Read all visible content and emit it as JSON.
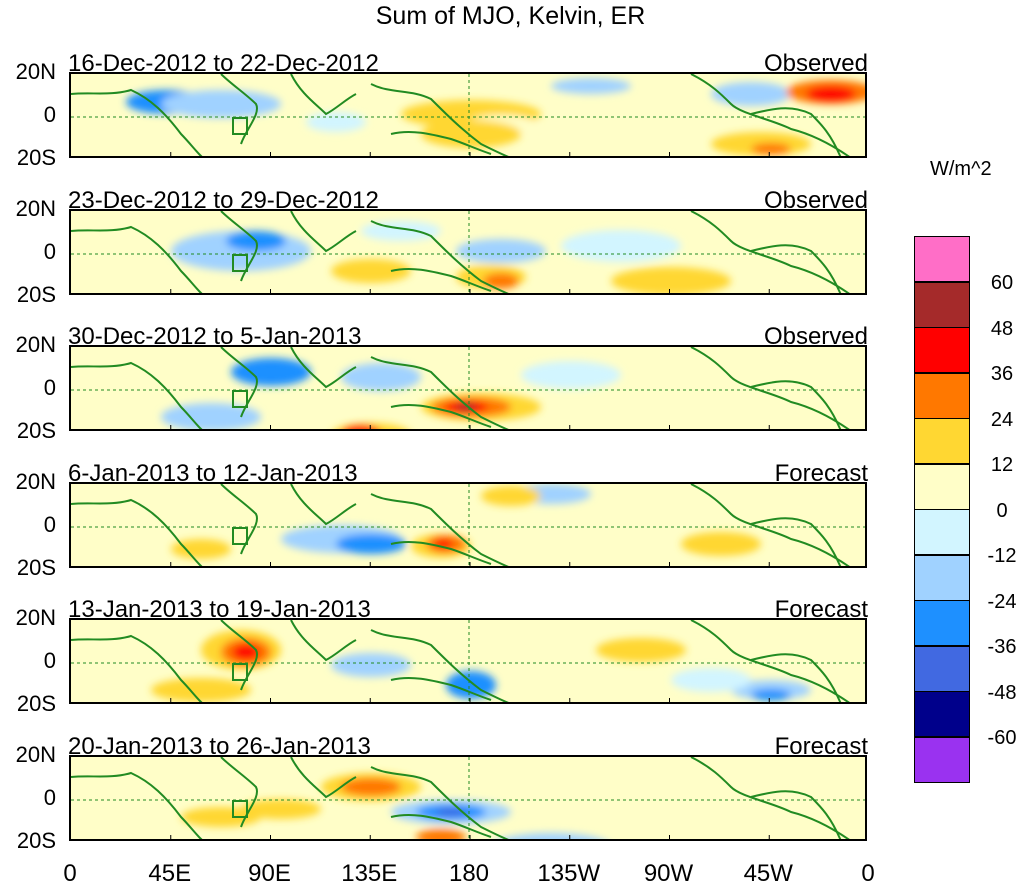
{
  "title": "Sum of MJO, Kelvin, ER",
  "units": "W/m^2",
  "panels": [
    {
      "date_range": "16-Dec-2012 to 22-Dec-2012",
      "status": "Observed"
    },
    {
      "date_range": "23-Dec-2012 to 29-Dec-2012",
      "status": "Observed"
    },
    {
      "date_range": "30-Dec-2012 to 5-Jan-2013",
      "status": "Observed"
    },
    {
      "date_range": "6-Jan-2013 to 12-Jan-2013",
      "status": "Forecast"
    },
    {
      "date_range": "13-Jan-2013 to 19-Jan-2013",
      "status": "Forecast"
    },
    {
      "date_range": "20-Jan-2013 to 26-Jan-2013",
      "status": "Forecast"
    }
  ],
  "lat_labels": [
    "20N",
    "0",
    "20S"
  ],
  "lon_labels": [
    "0",
    "45E",
    "90E",
    "135E",
    "180",
    "135W",
    "90W",
    "45W",
    "0"
  ],
  "colorbar": {
    "labels": [
      "60",
      "48",
      "36",
      "24",
      "12",
      "0",
      "-12",
      "-24",
      "-36",
      "-48",
      "-60"
    ],
    "colors": [
      "#ff6ec7",
      "#a52a2a",
      "#ff0000",
      "#ff7800",
      "#ffd732",
      "#fffec8",
      "#d2f5ff",
      "#a0d2ff",
      "#1e90ff",
      "#4169e1",
      "#00008b",
      "#9a32f0"
    ]
  },
  "colors": {
    "coast": "#228b22",
    "grid": "#228b22"
  }
}
